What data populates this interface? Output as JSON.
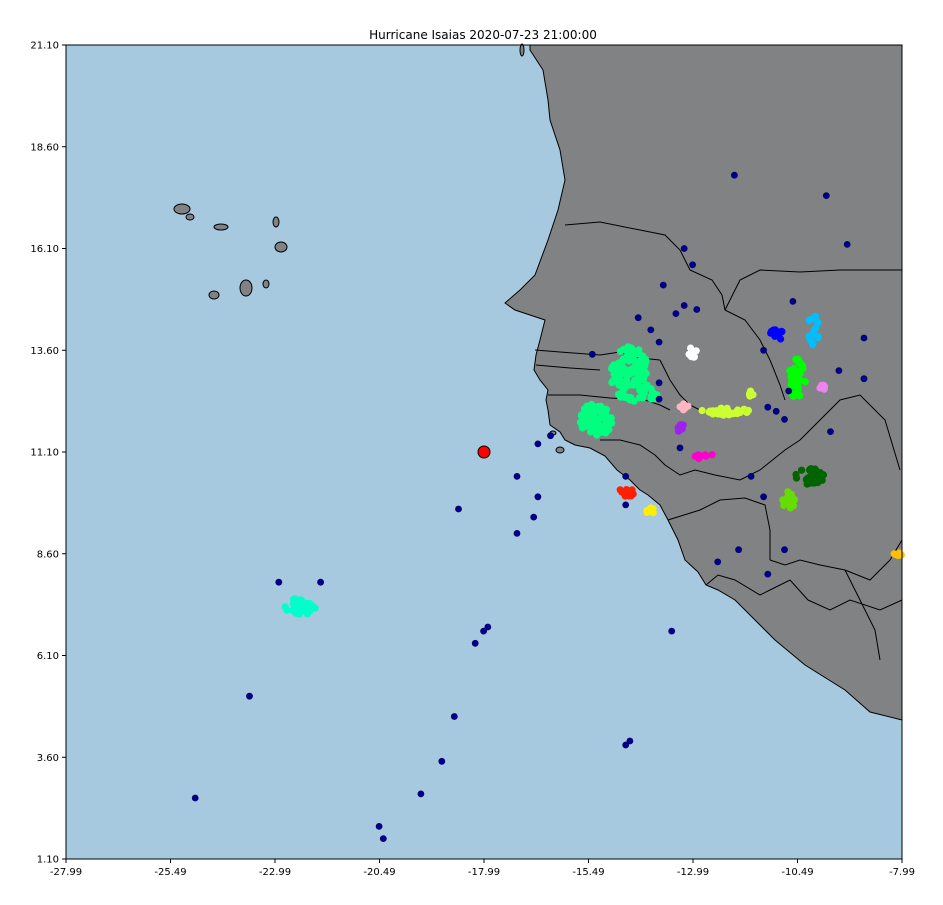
{
  "title": "Hurricane Isaias 2020-07-23 21:00:00",
  "colors": {
    "ocean": "#a6c9df",
    "land": "#808284",
    "coast": "#000000",
    "center": "#ff0000"
  },
  "chart_data": {
    "type": "scatter",
    "title": "Hurricane Isaias 2020-07-23 21:00:00",
    "xlim": [
      -27.99,
      -7.99
    ],
    "ylim": [
      1.1,
      21.1
    ],
    "x_ticks": [
      "-27.99",
      "-25.49",
      "-22.99",
      "-20.49",
      "-17.99",
      "-15.49",
      "-12.99",
      "-10.49",
      "-7.99"
    ],
    "y_ticks": [
      "1.10",
      "3.60",
      "6.10",
      "8.60",
      "11.10",
      "13.60",
      "16.10",
      "18.60",
      "21.10"
    ],
    "storm_center": {
      "x": -17.99,
      "y": 11.1,
      "color": "#ff0000"
    },
    "scattered_points": {
      "color": "#000080",
      "points": [
        [
          -12.0,
          17.9
        ],
        [
          -9.8,
          17.4
        ],
        [
          -9.3,
          16.2
        ],
        [
          -13.0,
          15.7
        ],
        [
          -13.2,
          16.1
        ],
        [
          -13.7,
          15.2
        ],
        [
          -10.6,
          14.8
        ],
        [
          -13.2,
          14.7
        ],
        [
          -12.9,
          14.6
        ],
        [
          -13.4,
          14.5
        ],
        [
          -14.3,
          14.4
        ],
        [
          -14.0,
          14.1
        ],
        [
          -13.8,
          13.8
        ],
        [
          -15.4,
          13.5
        ],
        [
          -11.3,
          13.6
        ],
        [
          -8.9,
          13.9
        ],
        [
          -13.8,
          12.8
        ],
        [
          -13.8,
          12.4
        ],
        [
          -9.5,
          13.1
        ],
        [
          -10.7,
          12.6
        ],
        [
          -11.2,
          12.2
        ],
        [
          -11.0,
          12.1
        ],
        [
          -10.8,
          11.9
        ],
        [
          -9.7,
          11.6
        ],
        [
          -13.3,
          11.2
        ],
        [
          -16.7,
          11.3
        ],
        [
          -16.4,
          11.5
        ],
        [
          -14.6,
          10.5
        ],
        [
          -17.2,
          10.5
        ],
        [
          -11.6,
          10.5
        ],
        [
          -11.3,
          10.0
        ],
        [
          -16.7,
          10.0
        ],
        [
          -14.6,
          9.8
        ],
        [
          -18.6,
          9.7
        ],
        [
          -16.8,
          9.5
        ],
        [
          -17.2,
          9.1
        ],
        [
          -11.9,
          8.7
        ],
        [
          -10.8,
          8.7
        ],
        [
          -12.4,
          8.4
        ],
        [
          -11.2,
          8.1
        ],
        [
          -8.9,
          12.9
        ],
        [
          -22.9,
          7.9
        ],
        [
          -21.9,
          7.9
        ],
        [
          -17.9,
          6.8
        ],
        [
          -18.0,
          6.7
        ],
        [
          -18.2,
          6.4
        ],
        [
          -13.5,
          6.7
        ],
        [
          -23.6,
          5.1
        ],
        [
          -18.7,
          4.6
        ],
        [
          -19.0,
          3.5
        ],
        [
          -14.5,
          4.0
        ],
        [
          -14.6,
          3.9
        ],
        [
          -19.5,
          2.7
        ],
        [
          -24.9,
          2.6
        ],
        [
          -20.5,
          1.9
        ],
        [
          -20.4,
          1.6
        ]
      ]
    },
    "clusters": [
      {
        "color": "#00ff7f",
        "cx": -14.5,
        "cy": 13.0,
        "rx": 0.45,
        "ry": 0.7,
        "n": 120
      },
      {
        "color": "#00ff7f",
        "cx": -15.3,
        "cy": 11.9,
        "rx": 0.4,
        "ry": 0.4,
        "n": 90
      },
      {
        "color": "#00ff7f",
        "cx": -14.1,
        "cy": 12.5,
        "rx": 0.25,
        "ry": 0.2,
        "n": 15
      },
      {
        "color": "#00ffcc",
        "cx": -22.4,
        "cy": 7.3,
        "rx": 0.4,
        "ry": 0.2,
        "n": 30
      },
      {
        "color": "#ffffff",
        "cx": -13.0,
        "cy": 13.55,
        "rx": 0.1,
        "ry": 0.15,
        "n": 8
      },
      {
        "color": "#0000ff",
        "cx": -11.0,
        "cy": 14.0,
        "rx": 0.2,
        "ry": 0.15,
        "n": 15
      },
      {
        "color": "#00bfff",
        "cx": -10.1,
        "cy": 14.1,
        "rx": 0.15,
        "ry": 0.4,
        "n": 14
      },
      {
        "color": "#00ff00",
        "cx": -10.5,
        "cy": 12.9,
        "rx": 0.2,
        "ry": 0.5,
        "n": 40
      },
      {
        "color": "#ee82ee",
        "cx": -9.9,
        "cy": 12.7,
        "rx": 0.1,
        "ry": 0.1,
        "n": 5
      },
      {
        "color": "#ccff33",
        "cx": -12.2,
        "cy": 12.1,
        "rx": 0.6,
        "ry": 0.1,
        "n": 30
      },
      {
        "color": "#ccff33",
        "cx": -11.6,
        "cy": 12.5,
        "rx": 0.1,
        "ry": 0.1,
        "n": 5
      },
      {
        "color": "#ffb6c1",
        "cx": -13.2,
        "cy": 12.2,
        "rx": 0.1,
        "ry": 0.08,
        "n": 6
      },
      {
        "color": "#a020f0",
        "cx": -13.3,
        "cy": 11.7,
        "rx": 0.1,
        "ry": 0.12,
        "n": 6
      },
      {
        "color": "#ff00cc",
        "cx": -12.7,
        "cy": 11.0,
        "rx": 0.25,
        "ry": 0.08,
        "n": 8
      },
      {
        "color": "#ff2000",
        "cx": -14.6,
        "cy": 10.1,
        "rx": 0.2,
        "ry": 0.12,
        "n": 12
      },
      {
        "color": "#ffee00",
        "cx": -14.0,
        "cy": 9.65,
        "rx": 0.1,
        "ry": 0.08,
        "n": 6
      },
      {
        "color": "#006400",
        "cx": -10.2,
        "cy": 10.5,
        "rx": 0.35,
        "ry": 0.2,
        "n": 35
      },
      {
        "color": "#66dd00",
        "cx": -10.7,
        "cy": 9.9,
        "rx": 0.15,
        "ry": 0.25,
        "n": 20
      },
      {
        "color": "#ffc000",
        "cx": -8.1,
        "cy": 8.6,
        "rx": 0.15,
        "ry": 0.05,
        "n": 5
      }
    ]
  }
}
